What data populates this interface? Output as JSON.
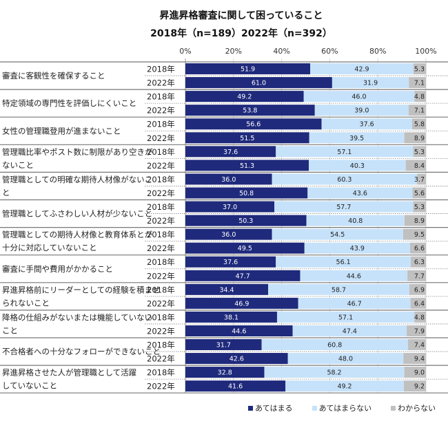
{
  "chart_data": {
    "type": "bar",
    "orientation": "horizontal",
    "stacked": true,
    "percent": true,
    "title": "昇進昇格審査に関して困っていること",
    "subtitle": "2018年（n=189）2022年（n=392）",
    "xlabel": "",
    "ylabel": "",
    "xlim": [
      0,
      100
    ],
    "x_ticks": [
      "0%",
      "20%",
      "40%",
      "60%",
      "80%",
      "100%"
    ],
    "x_axis_position": "top",
    "legend_position": "bottom-right",
    "grid": true,
    "colors": {
      "applies": "#1f2a7c",
      "not_applies": "#c6e2fa",
      "unknown": "#c0c0c0"
    },
    "legend": [
      "あてはまる",
      "あてはまらない",
      "わからない"
    ],
    "categories": [
      {
        "label": [
          "審査に客観性を確保すること"
        ],
        "rows": [
          {
            "year": "2018年",
            "values": [
              51.9,
              42.9,
              5.3
            ]
          },
          {
            "year": "2022年",
            "values": [
              61.0,
              31.9,
              7.1
            ]
          }
        ]
      },
      {
        "label": [
          "特定領域の専門性を評価しにくいこと"
        ],
        "rows": [
          {
            "year": "2018年",
            "values": [
              49.2,
              46.0,
              4.8
            ]
          },
          {
            "year": "2022年",
            "values": [
              53.8,
              39.0,
              7.1
            ]
          }
        ]
      },
      {
        "label": [
          "女性の管理職登用が進まないこと"
        ],
        "rows": [
          {
            "year": "2018年",
            "values": [
              56.6,
              37.6,
              5.8
            ]
          },
          {
            "year": "2022年",
            "values": [
              51.5,
              39.5,
              8.9
            ]
          }
        ]
      },
      {
        "label": [
          "管理職比率やポスト数に制限があり空きが",
          "ないこと"
        ],
        "rows": [
          {
            "year": "2018年",
            "values": [
              37.6,
              57.1,
              5.3
            ]
          },
          {
            "year": "2022年",
            "values": [
              51.3,
              40.3,
              8.4
            ]
          }
        ]
      },
      {
        "label": [
          "管理職としての明確な期待人材像がないこ",
          "と"
        ],
        "rows": [
          {
            "year": "2018年",
            "values": [
              36.0,
              60.3,
              3.7
            ]
          },
          {
            "year": "2022年",
            "values": [
              50.8,
              43.6,
              5.6
            ]
          }
        ]
      },
      {
        "label": [
          "管理職としてふさわしい人材が少ないこと"
        ],
        "rows": [
          {
            "year": "2018年",
            "values": [
              37.0,
              57.7,
              5.3
            ]
          },
          {
            "year": "2022年",
            "values": [
              50.3,
              40.8,
              8.9
            ]
          }
        ]
      },
      {
        "label": [
          "管理職としての期待人材像と教育体系とが",
          "十分に対応していないこと"
        ],
        "rows": [
          {
            "year": "2018年",
            "values": [
              36.0,
              54.5,
              9.5
            ]
          },
          {
            "year": "2022年",
            "values": [
              49.5,
              43.9,
              6.6
            ]
          }
        ]
      },
      {
        "label": [
          "審査に手間や費用がかかること"
        ],
        "rows": [
          {
            "year": "2018年",
            "values": [
              37.6,
              56.1,
              6.3
            ]
          },
          {
            "year": "2022年",
            "values": [
              47.7,
              44.6,
              7.7
            ]
          }
        ]
      },
      {
        "label": [
          "昇進昇格前にリーダーとしての経験を積ませ",
          "られないこと"
        ],
        "rows": [
          {
            "year": "2018年",
            "values": [
              34.4,
              58.7,
              6.9
            ]
          },
          {
            "year": "2022年",
            "values": [
              46.9,
              46.7,
              6.4
            ]
          }
        ]
      },
      {
        "label": [
          "降格の仕組みがないまたは機能していない",
          "こと"
        ],
        "rows": [
          {
            "year": "2018年",
            "values": [
              38.1,
              57.1,
              4.8
            ]
          },
          {
            "year": "2022年",
            "values": [
              44.6,
              47.4,
              7.9
            ]
          }
        ]
      },
      {
        "label": [
          "不合格者への十分なフォローができないこと"
        ],
        "rows": [
          {
            "year": "2018年",
            "values": [
              31.7,
              60.8,
              7.4
            ]
          },
          {
            "year": "2022年",
            "values": [
              42.6,
              48.0,
              9.4
            ]
          }
        ]
      },
      {
        "label": [
          "昇進昇格させた人が管理職として活躍",
          "していないこと"
        ],
        "rows": [
          {
            "year": "2018年",
            "values": [
              32.8,
              58.2,
              9.0
            ]
          },
          {
            "year": "2022年",
            "values": [
              41.6,
              49.2,
              9.2
            ]
          }
        ]
      }
    ]
  }
}
